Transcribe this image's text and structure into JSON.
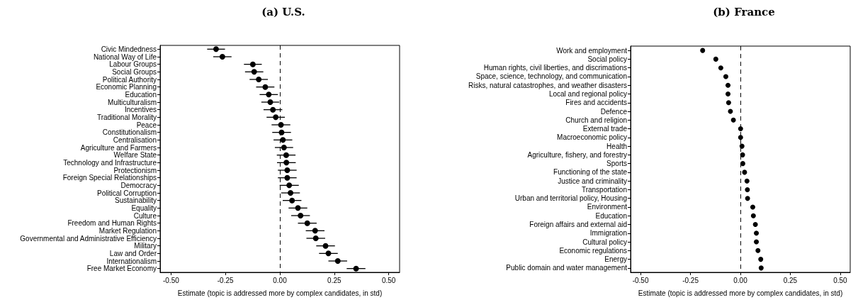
{
  "chart_data": [
    {
      "type": "scatter",
      "title": "(a) U.S.",
      "xlabel": "Estimate (topic is addressed more by complex candidates, in std)",
      "orientation": "horizontal",
      "marker": "circle",
      "grid": false,
      "categories": [
        "Civic Mindedness",
        "National Way of Life",
        "Labour Groups",
        "Social Groups",
        "Political Authority",
        "Economic Planning",
        "Education",
        "Multiculturalism",
        "Incentives",
        "Traditional Morality",
        "Peace",
        "Constitutionalism",
        "Centralisation",
        "Agriculture and Farmers",
        "Welfare State",
        "Technology and Infrastructure",
        "Protectionism",
        "Foreign Special Relationships",
        "Democracy",
        "Political Corruption",
        "Sustainability",
        "Equality",
        "Culture",
        "Freedom and Human Rights",
        "Market Regulation",
        "Governmental and Administrative Efficiency",
        "Military",
        "Law and Order",
        "Internationalism",
        "Free Market Economy"
      ],
      "series": [
        {
          "color": "#000000",
          "values": [
            -0.293,
            -0.264,
            -0.124,
            -0.118,
            -0.097,
            -0.067,
            -0.051,
            -0.044,
            -0.032,
            -0.019,
            0.005,
            0.008,
            0.014,
            0.019,
            0.029,
            0.03,
            0.034,
            0.034,
            0.043,
            0.049,
            0.056,
            0.083,
            0.095,
            0.126,
            0.162,
            0.165,
            0.21,
            0.223,
            0.266,
            0.35
          ],
          "errors": [
            0.041,
            0.042,
            0.041,
            0.042,
            0.042,
            0.042,
            0.042,
            0.041,
            0.043,
            0.042,
            0.043,
            0.043,
            0.043,
            0.042,
            0.043,
            0.043,
            0.043,
            0.043,
            0.044,
            0.043,
            0.043,
            0.043,
            0.043,
            0.043,
            0.043,
            0.043,
            0.043,
            0.043,
            0.043,
            0.043
          ]
        }
      ],
      "xlim": [
        -0.55,
        0.55
      ],
      "xticks": [
        {
          "value": -0.5,
          "label": "-0.50"
        },
        {
          "value": -0.25,
          "label": "-0.25"
        },
        {
          "value": 0,
          "label": "0.00"
        },
        {
          "value": 0.25,
          "label": "0.25"
        },
        {
          "value": 0.5,
          "label": "0.50"
        }
      ],
      "ref_lines": [
        {
          "axis": "x",
          "value": 0,
          "line_style": "dashed",
          "color": "#000000"
        }
      ]
    },
    {
      "type": "scatter",
      "title": "(b) France",
      "xlabel": "Estimate (topic is addressed more by complex candidates, in std)",
      "orientation": "horizontal",
      "marker": "circle",
      "grid": false,
      "categories": [
        "Work and employment",
        "Social policy",
        "Human rights, civil liberties, and discrimations",
        "Space, science, technology, and communication",
        "Risks, natural catastrophes, and weather disasters",
        "Local and regional policy",
        "Fires and accidents",
        "Defence",
        "Church and religion",
        "External trade",
        "Macroeconomic policy",
        "Health",
        "Agriculture, fishery, and forestry",
        "Sports",
        "Functioning of the state",
        "Justice and criminality",
        "Transportation",
        "Urban and territorial policy, Housing",
        "Environment",
        "Education",
        "Foreign affairs and external aid",
        "Immigration",
        "Cultural policy",
        "Economic regulations",
        "Energy",
        "Public domain and water management"
      ],
      "series": [
        {
          "color": "#000000",
          "values": [
            -0.189,
            -0.123,
            -0.098,
            -0.073,
            -0.062,
            -0.062,
            -0.059,
            -0.05,
            -0.035,
            0.001,
            0.001,
            0.008,
            0.011,
            0.012,
            0.021,
            0.033,
            0.035,
            0.036,
            0.062,
            0.065,
            0.075,
            0.08,
            0.08,
            0.088,
            0.102,
            0.104
          ],
          "errors": [
            0.01,
            0.01,
            0.01,
            0.01,
            0.01,
            0.01,
            0.01,
            0.01,
            0.01,
            0.01,
            0.01,
            0.01,
            0.01,
            0.01,
            0.01,
            0.01,
            0.01,
            0.01,
            0.01,
            0.01,
            0.01,
            0.01,
            0.01,
            0.01,
            0.01,
            0.01
          ]
        }
      ],
      "xlim": [
        -0.55,
        0.55
      ],
      "xticks": [
        {
          "value": -0.5,
          "label": "-0.50"
        },
        {
          "value": -0.25,
          "label": "-0.25"
        },
        {
          "value": 0,
          "label": "0.00"
        },
        {
          "value": 0.25,
          "label": "0.25"
        },
        {
          "value": 0.5,
          "label": "0.50"
        }
      ],
      "ref_lines": [
        {
          "axis": "x",
          "value": 0,
          "line_style": "dashed",
          "color": "#000000"
        }
      ]
    }
  ]
}
